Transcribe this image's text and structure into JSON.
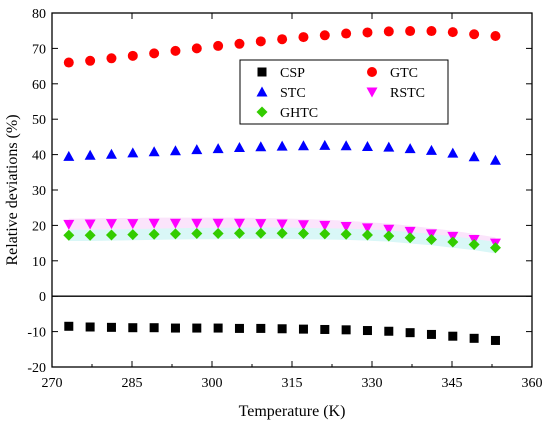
{
  "chart_data": {
    "type": "scatter",
    "xlabel": "Temperature (K)",
    "ylabel": "Relative deviations (%)",
    "xlim": [
      270,
      360
    ],
    "ylim": [
      -20,
      80
    ],
    "xticks": [
      "270",
      "285",
      "300",
      "315",
      "330",
      "345",
      "360"
    ],
    "yticks": [
      "-20",
      "-10",
      "0",
      "10",
      "20",
      "30",
      "40",
      "50",
      "60",
      "70",
      "80"
    ],
    "zero_line": 0,
    "legend_position": "top-center",
    "x": [
      273.15,
      277.15,
      281.15,
      285.15,
      289.15,
      293.15,
      297.15,
      301.15,
      305.15,
      309.15,
      313.15,
      317.15,
      321.15,
      325.15,
      329.15,
      333.15,
      337.15,
      341.15,
      345.15,
      349.15,
      353.15
    ],
    "series": [
      {
        "name": "CSP",
        "marker": "square",
        "color": "#000000",
        "values": [
          -8.5,
          -8.7,
          -8.8,
          -8.9,
          -8.9,
          -9.0,
          -9.0,
          -9.0,
          -9.1,
          -9.1,
          -9.2,
          -9.3,
          -9.4,
          -9.5,
          -9.7,
          -9.9,
          -10.3,
          -10.8,
          -11.3,
          -11.9,
          -12.5
        ]
      },
      {
        "name": "GTC",
        "marker": "circle",
        "color": "#ff0000",
        "values": [
          66.0,
          66.5,
          67.2,
          67.9,
          68.6,
          69.3,
          70.0,
          70.7,
          71.3,
          72.0,
          72.6,
          73.2,
          73.7,
          74.2,
          74.5,
          74.8,
          74.9,
          74.9,
          74.6,
          74.0,
          73.5
        ]
      },
      {
        "name": "STC",
        "marker": "triangle-up",
        "color": "#0000ff",
        "values": [
          39.5,
          39.8,
          40.1,
          40.5,
          40.8,
          41.1,
          41.4,
          41.7,
          42.0,
          42.2,
          42.4,
          42.5,
          42.6,
          42.5,
          42.3,
          42.1,
          41.7,
          41.2,
          40.4,
          39.4,
          38.4
        ]
      },
      {
        "name": "RSTC",
        "marker": "triangle-down",
        "color": "#ff00ff",
        "values": [
          20.3,
          20.4,
          20.5,
          20.5,
          20.6,
          20.6,
          20.6,
          20.6,
          20.6,
          20.5,
          20.4,
          20.2,
          20.0,
          19.7,
          19.3,
          18.9,
          18.3,
          17.6,
          16.9,
          16.0,
          15.0
        ]
      },
      {
        "name": "GHTC",
        "marker": "diamond",
        "color": "#33cc00",
        "values": [
          17.2,
          17.2,
          17.3,
          17.4,
          17.5,
          17.6,
          17.7,
          17.7,
          17.8,
          17.8,
          17.8,
          17.7,
          17.6,
          17.5,
          17.3,
          17.0,
          16.5,
          16.0,
          15.3,
          14.6,
          13.7
        ]
      }
    ]
  }
}
